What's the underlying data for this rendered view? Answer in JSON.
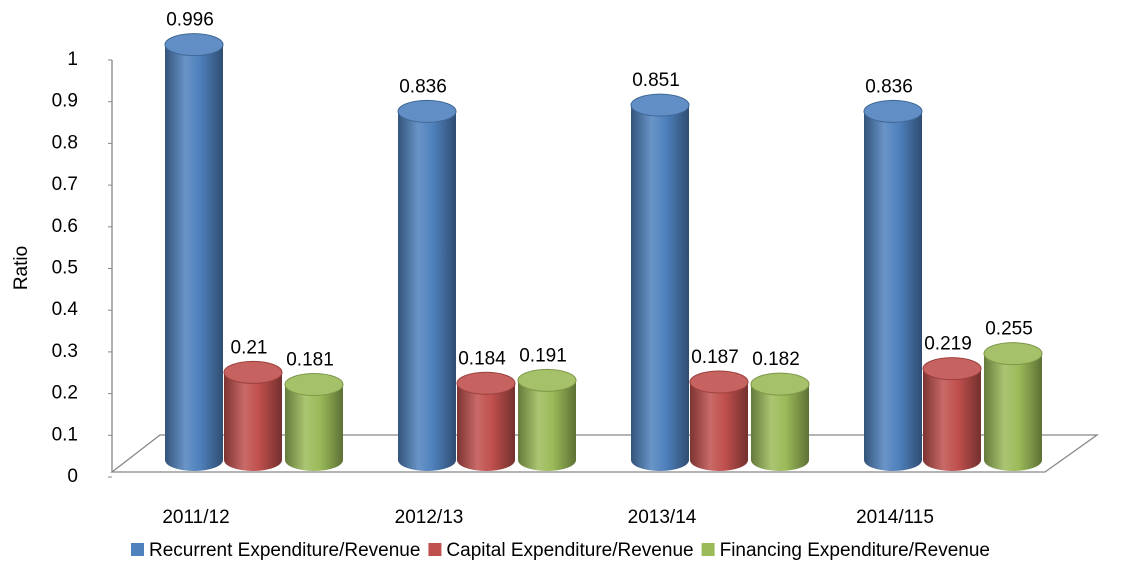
{
  "chart_data": {
    "type": "bar3d",
    "y_label": "Ratio",
    "categories": [
      "2011/12",
      "2012/13",
      "2013/14",
      "2014/115"
    ],
    "series": [
      {
        "name": "Recurrent Expenditure/Revenue",
        "color": "#4f81bd",
        "values": [
          0.996,
          0.836,
          0.851,
          0.836
        ]
      },
      {
        "name": "Capital Expenditure/Revenue",
        "color": "#c0504d",
        "values": [
          0.21,
          0.184,
          0.187,
          0.219
        ]
      },
      {
        "name": "Financing Expenditure/Revenue",
        "color": "#9bbb59",
        "values": [
          0.181,
          0.191,
          0.182,
          0.255
        ]
      }
    ],
    "ylim": [
      0,
      1
    ],
    "yticks": [
      0,
      0.1,
      0.2,
      0.3,
      0.4,
      0.5,
      0.6,
      0.7,
      0.8,
      0.9,
      1
    ],
    "legend": "bottom"
  }
}
